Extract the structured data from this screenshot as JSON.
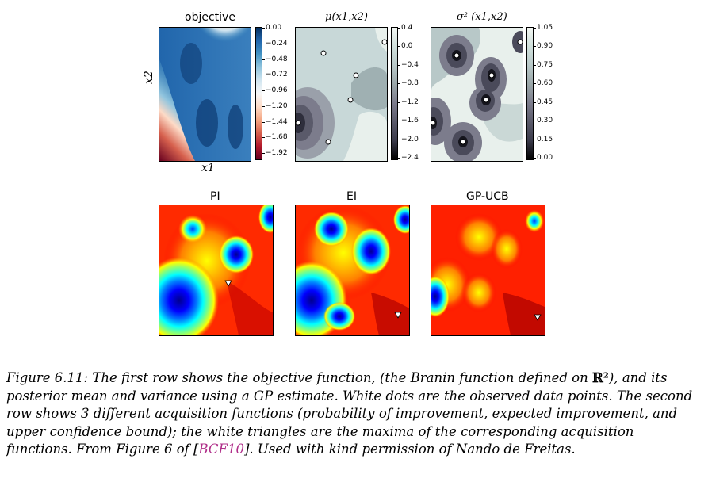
{
  "row1": {
    "objective": {
      "title": "objective",
      "xlabel": "x1",
      "ylabel": "x2",
      "colorbar_ticks": [
        "0.00",
        "−0.24",
        "−0.48",
        "−0.72",
        "−0.96",
        "−1.20",
        "−1.44",
        "−1.68",
        "−1.92"
      ]
    },
    "mu": {
      "title": "μ(x1,x2)",
      "colorbar_ticks": [
        "0.4",
        "0.0",
        "−0.4",
        "−0.8",
        "−1.2",
        "−1.6",
        "−2.0",
        "−2.4"
      ]
    },
    "sigma": {
      "title": "σ² (x1,x2)",
      "colorbar_ticks": [
        "1.05",
        "0.90",
        "0.75",
        "0.60",
        "0.45",
        "0.30",
        "0.15",
        "0.00"
      ]
    }
  },
  "row2": {
    "pi": {
      "title": "PI"
    },
    "ei": {
      "title": "EI"
    },
    "ucb": {
      "title": "GP-UCB"
    }
  },
  "caption": {
    "part1": "Figure 6.11: The first row shows the objective function, (the Branin function defined on ",
    "rset": "ℝ²",
    "part2": "), and its posterior mean and variance using a GP estimate. White dots are the observed data points. The second row shows 3 different acquisition functions (probability of improvement, expected improvement, and upper confidence bound); the white triangles are the maxima of the corresponding acquisition functions. From Figure 6 of [",
    "cite": "BCF10",
    "part3": "]. Used with kind permission of Nando de Freitas."
  },
  "colors": {
    "objective_cmap": [
      "#67001f",
      "#b2182b",
      "#d6604d",
      "#f4a582",
      "#fddbc7",
      "#f7f7f7",
      "#d1e5f0",
      "#92c5de",
      "#4393c3",
      "#2166ac",
      "#053061"
    ],
    "gray_cmap": [
      "#000000",
      "#3a3a4a",
      "#5a5a6a",
      "#7c7c8c",
      "#9aa6a8",
      "#b8c8c8",
      "#d0e0dc",
      "#f2f6f2"
    ],
    "jet_cmap": [
      "#00008f",
      "#0000ff",
      "#0080ff",
      "#00ffff",
      "#80ff80",
      "#ffff00",
      "#ff8000",
      "#ff0000",
      "#800000"
    ]
  }
}
